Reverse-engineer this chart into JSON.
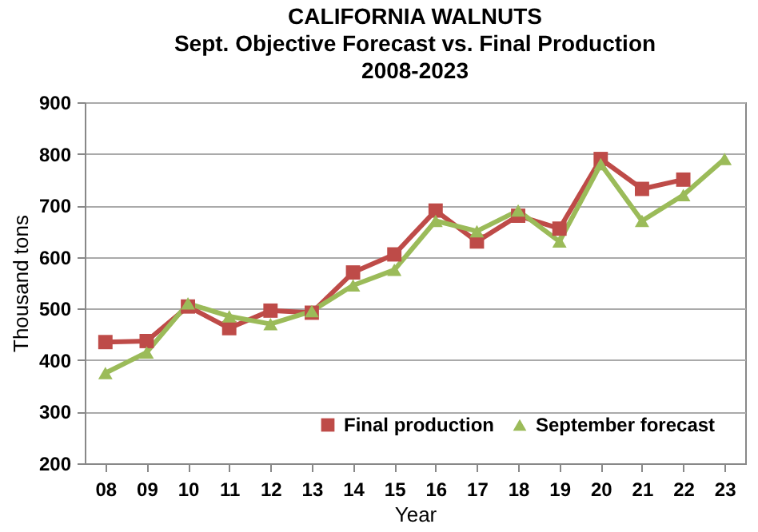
{
  "chart_data": {
    "type": "line",
    "title": "CALIFORNIA WALNUTS\nSept. Objective Forecast vs. Final Production\n2008-2023",
    "xlabel": "Year",
    "ylabel": "Thousand tons",
    "categories": [
      "08",
      "09",
      "10",
      "11",
      "12",
      "13",
      "14",
      "15",
      "16",
      "17",
      "18",
      "19",
      "20",
      "21",
      "22",
      "23"
    ],
    "series": [
      {
        "name": "Final production",
        "color": "#be4b48",
        "marker": "square",
        "values": [
          435,
          437,
          504,
          462,
          496,
          492,
          570,
          605,
          690,
          630,
          680,
          655,
          790,
          732,
          750,
          null
        ]
      },
      {
        "name": "September forecast",
        "color": "#9bbb59",
        "marker": "triangle",
        "values": [
          375,
          415,
          510,
          485,
          470,
          495,
          545,
          575,
          670,
          650,
          690,
          630,
          780,
          670,
          720,
          790
        ]
      }
    ],
    "ylim": [
      200,
      900
    ],
    "yticks": [
      200,
      300,
      400,
      500,
      600,
      700,
      800,
      900
    ],
    "grid": "y",
    "legend": "bottom right",
    "line_style": "solid"
  }
}
